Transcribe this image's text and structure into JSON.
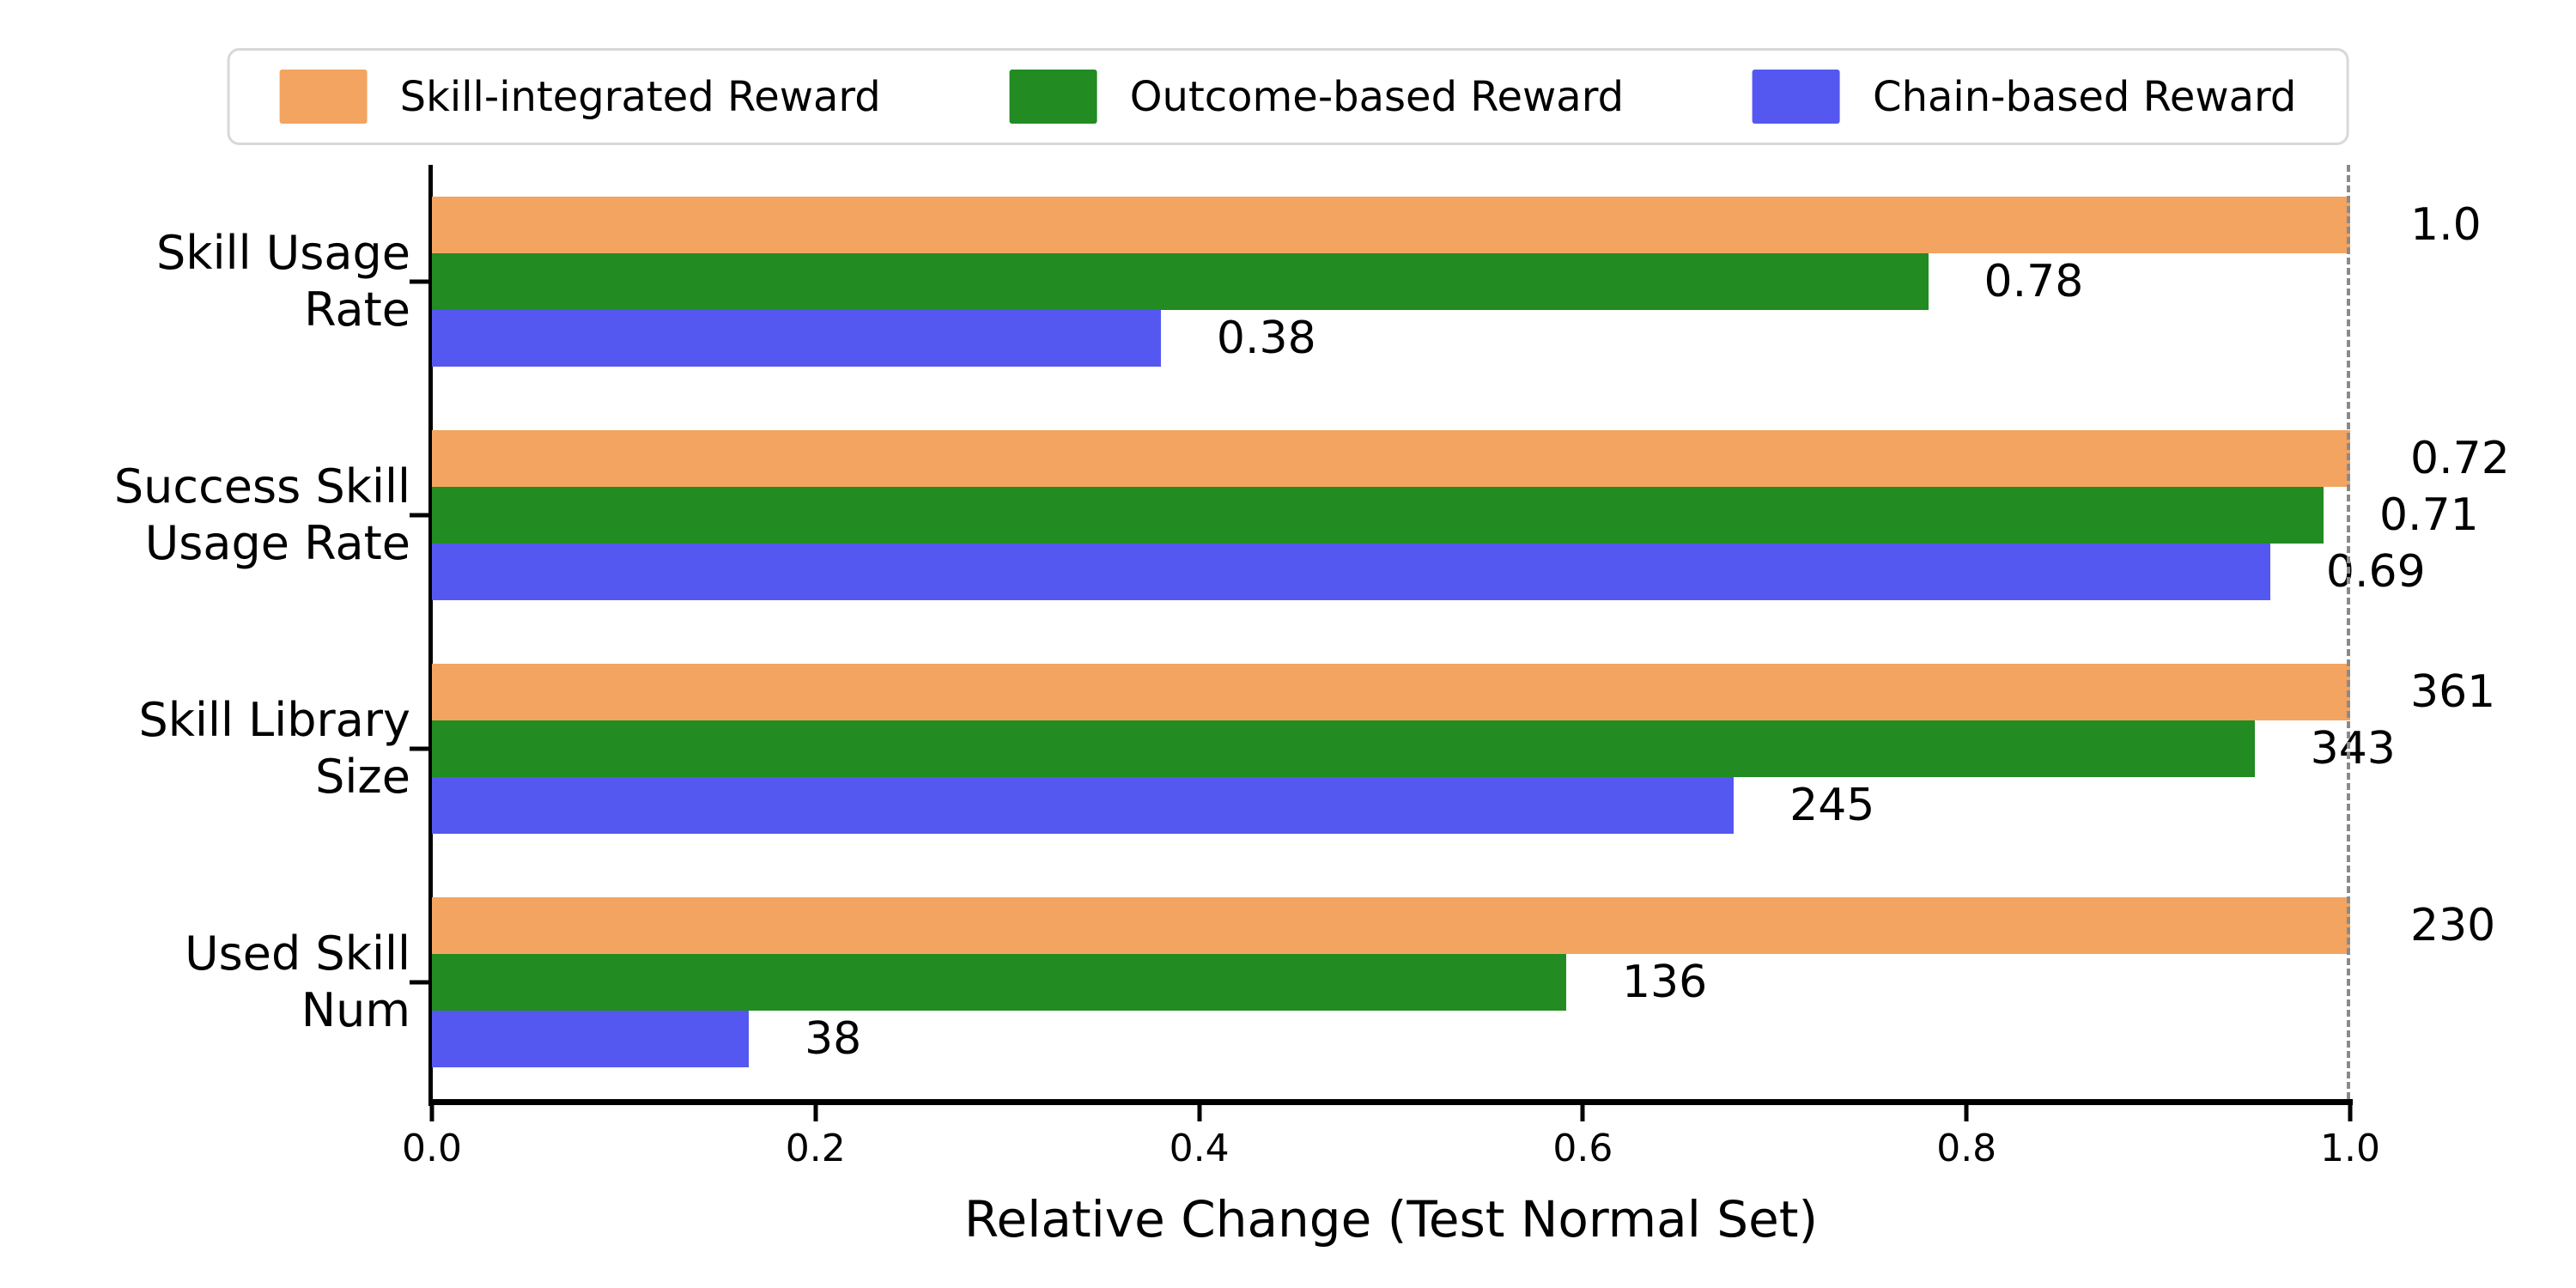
{
  "chart_data": {
    "type": "bar",
    "orientation": "horizontal",
    "title": "",
    "xlabel": "Relative Change (Test Normal Set)",
    "ylabel": "",
    "xlim": [
      0.0,
      1.0
    ],
    "grid": false,
    "legend_position": "top",
    "reference_line_x": 1.0,
    "x_ticks": [
      {
        "label": "0.0",
        "value": 0.0
      },
      {
        "label": "0.2",
        "value": 0.2
      },
      {
        "label": "0.4",
        "value": 0.4
      },
      {
        "label": "0.6",
        "value": 0.6
      },
      {
        "label": "0.8",
        "value": 0.8
      },
      {
        "label": "1.0",
        "value": 1.0
      }
    ],
    "categories": [
      {
        "lines": [
          "Skill Usage",
          "Rate"
        ]
      },
      {
        "lines": [
          "Success Skill",
          "Usage Rate"
        ]
      },
      {
        "lines": [
          "Skill Library",
          "Size"
        ]
      },
      {
        "lines": [
          "Used Skill",
          "Num"
        ]
      }
    ],
    "bar_note": "bar lengths are normalized per category to the Skill-integrated Reward value; printed labels are the actual values",
    "series": [
      {
        "name": "Skill-integrated Reward",
        "color": "#F2A460",
        "values": [
          1.0,
          0.72,
          361,
          230
        ],
        "labels": [
          "1.0",
          "0.72",
          "361",
          "230"
        ]
      },
      {
        "name": "Outcome-based Reward",
        "color": "#228B22",
        "values": [
          0.78,
          0.71,
          343,
          136
        ],
        "labels": [
          "0.78",
          "0.71",
          "343",
          "136"
        ]
      },
      {
        "name": "Chain-based Reward",
        "color": "#5558F0",
        "values": [
          0.38,
          0.69,
          245,
          38
        ],
        "labels": [
          "0.38",
          "0.69",
          "245",
          "38"
        ]
      }
    ],
    "colors": {
      "reference_line": "#8a8a8a",
      "legend_border": "#d8d8d8",
      "axis": "#000000"
    }
  }
}
